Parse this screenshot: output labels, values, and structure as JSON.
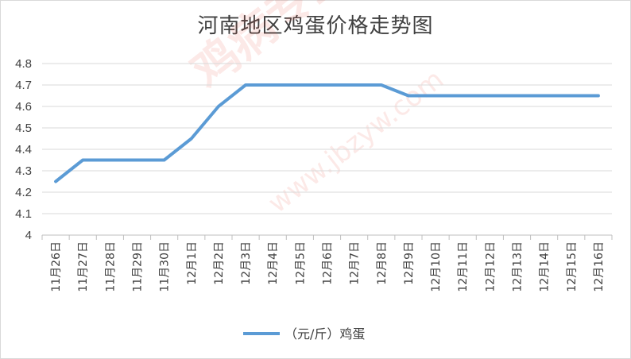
{
  "chart_data": {
    "type": "line",
    "title": "河南地区鸡蛋价格走势图",
    "categories": [
      "11月26日",
      "11月27日",
      "11月28日",
      "11月29日",
      "11月30日",
      "12月1日",
      "12月2日",
      "12月3日",
      "12月4日",
      "12月5日",
      "12月6日",
      "12月7日",
      "12月8日",
      "12月9日",
      "12月10日",
      "12月11日",
      "12月12日",
      "12月13日",
      "12月14日",
      "12月15日",
      "12月16日"
    ],
    "series": [
      {
        "name": "（元/斤）鸡蛋",
        "color": "#5b9bd5",
        "values": [
          4.25,
          4.35,
          4.35,
          4.35,
          4.35,
          4.45,
          4.6,
          4.7,
          4.7,
          4.7,
          4.7,
          4.7,
          4.7,
          4.65,
          4.65,
          4.65,
          4.65,
          4.65,
          4.65,
          4.65,
          4.65
        ]
      }
    ],
    "ylim": [
      4,
      4.8
    ],
    "yticks": [
      "4",
      "4.1",
      "4.2",
      "4.3",
      "4.4",
      "4.5",
      "4.6",
      "4.7",
      "4.8"
    ],
    "grid": true,
    "legend": "bottom"
  },
  "watermark": {
    "brand": "鸡病专业网",
    "url": "www.jbzyw.com"
  }
}
